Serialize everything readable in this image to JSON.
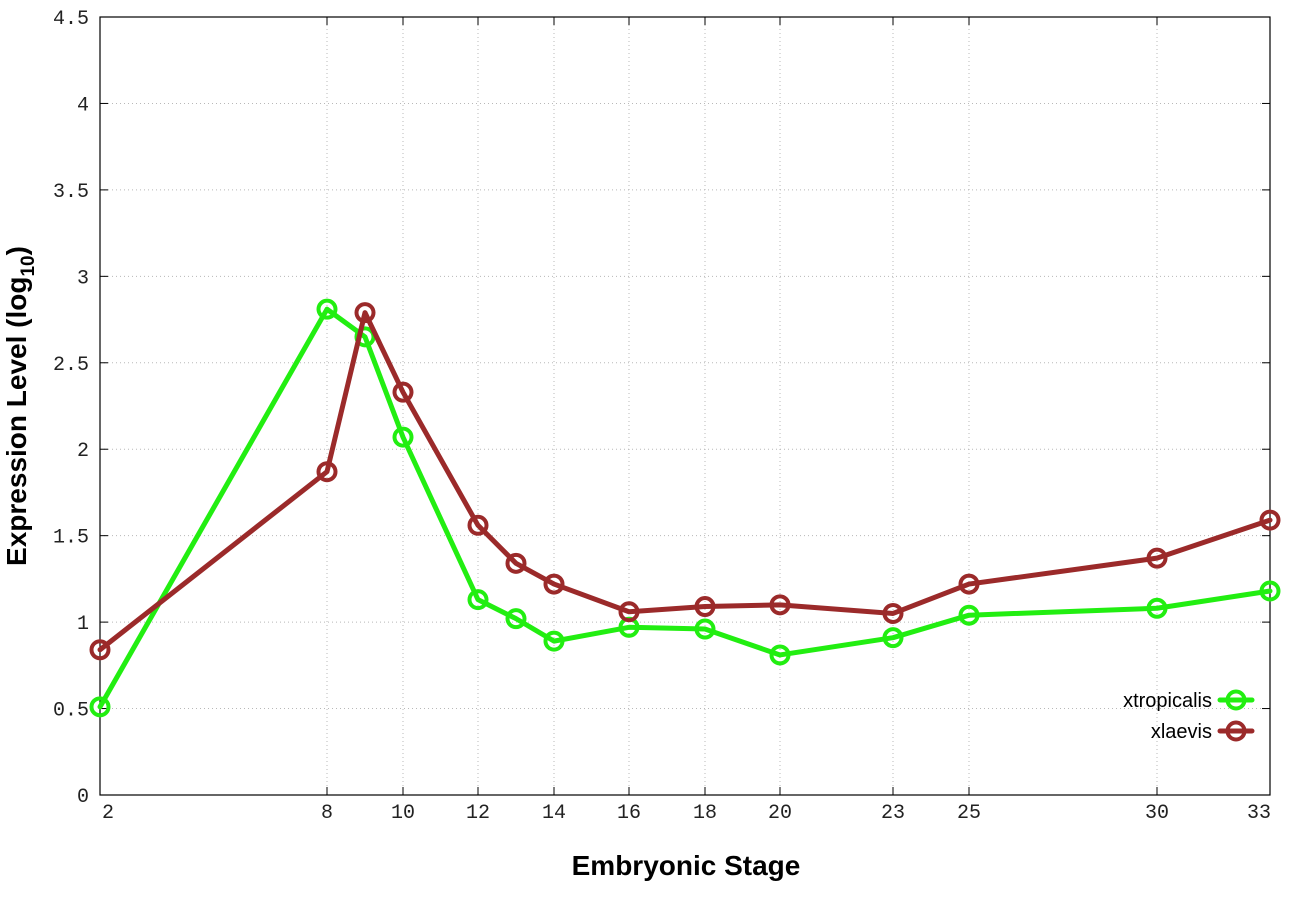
{
  "chart_data": {
    "type": "line",
    "title": "",
    "xlabel": "Embryonic Stage",
    "ylabel": "Expression Level (log",
    "ylabel_subscript": "10",
    "ylabel_suffix": ")",
    "x": [
      2,
      8,
      9,
      10,
      12,
      13,
      14,
      16,
      18,
      20,
      23,
      25,
      30,
      33
    ],
    "x_ticks": [
      2,
      8,
      10,
      12,
      14,
      16,
      18,
      20,
      23,
      25,
      30,
      33
    ],
    "x_tick_labels": [
      "2",
      "8",
      "10",
      "12",
      "14",
      "16",
      "18",
      "20",
      "23",
      "25",
      "30",
      "33"
    ],
    "xlim": [
      2,
      33
    ],
    "ylim": [
      0,
      4.5
    ],
    "y_ticks": [
      0,
      0.5,
      1,
      1.5,
      2,
      2.5,
      3,
      3.5,
      4,
      4.5
    ],
    "y_tick_labels": [
      "0",
      "0.5",
      "1",
      "1.5",
      "2",
      "2.5",
      "3",
      "3.5",
      "4",
      "4.5"
    ],
    "grid": true,
    "legend_position": "bottom-right",
    "series": [
      {
        "name": "xtropicalis",
        "color": "#22ee11",
        "values": [
          0.51,
          2.81,
          2.65,
          2.07,
          1.13,
          1.02,
          0.89,
          0.97,
          0.96,
          0.81,
          0.91,
          1.04,
          1.08,
          1.18
        ]
      },
      {
        "name": "xlaevis",
        "color": "#9b2a2a",
        "values": [
          0.84,
          1.87,
          2.79,
          2.33,
          1.56,
          1.34,
          1.22,
          1.06,
          1.09,
          1.1,
          1.05,
          1.22,
          1.37,
          1.59
        ]
      }
    ]
  }
}
